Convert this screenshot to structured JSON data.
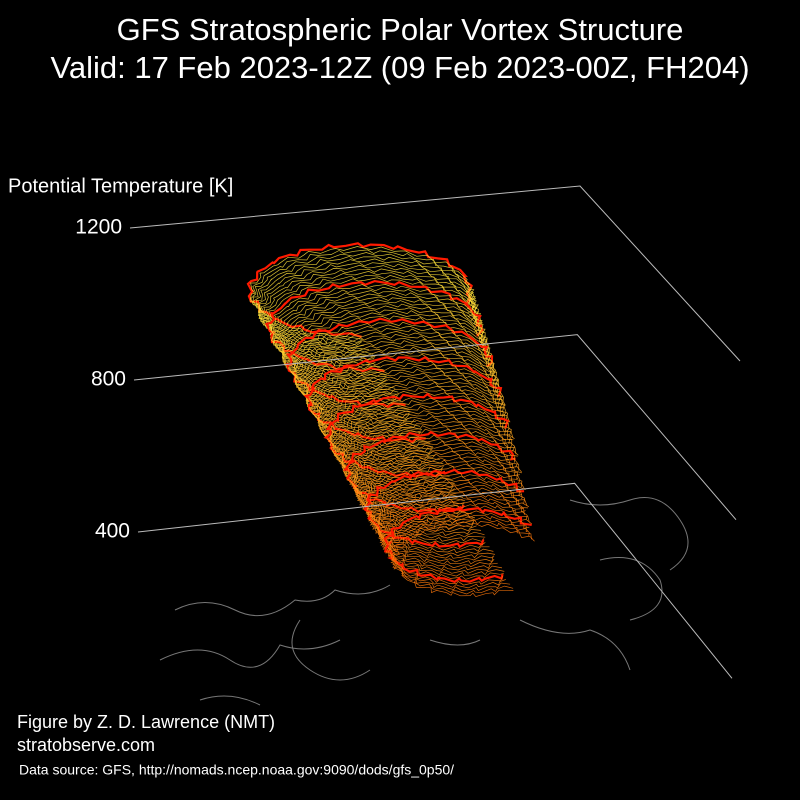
{
  "chart_data": {
    "type": "3d-vortex",
    "title": "GFS Stratospheric Polar Vortex Structure",
    "subtitle": "Valid: 17 Feb 2023-12Z  (09 Feb 2023-00Z, FH204)",
    "zlabel": "Potential Temperature [K]",
    "zlim": [
      0,
      1200
    ],
    "zticks": [
      400,
      800,
      1200
    ],
    "credit": "Figure by Z. D. Lawrence (NMT)",
    "website": "stratobserve.com",
    "source": "Data source: GFS, http://nomads.ncep.noaa.gov:9090/dods/gfs_0p50/"
  }
}
